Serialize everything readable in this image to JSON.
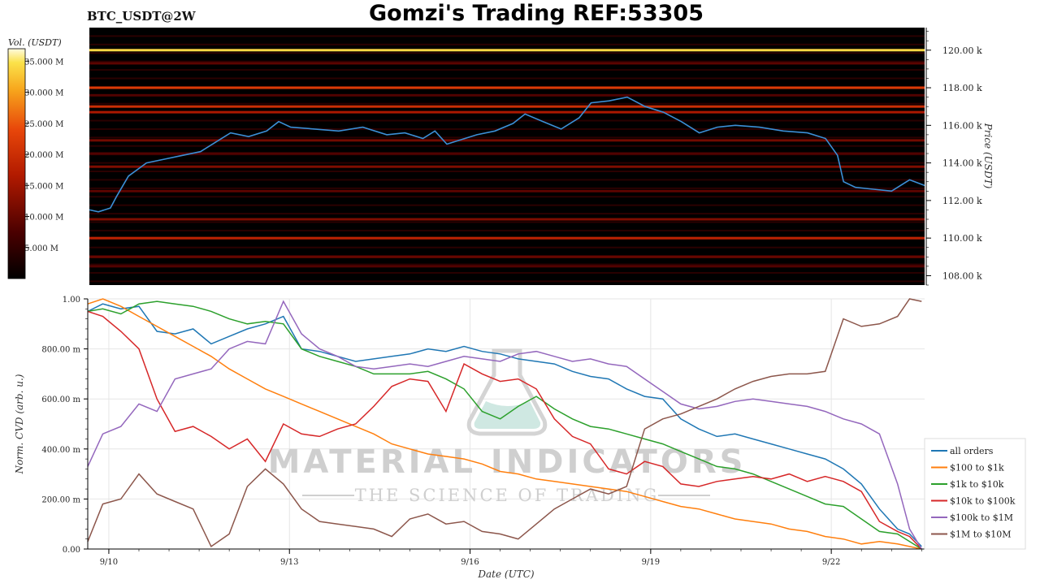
{
  "header": {
    "symbol": "BTC_USDT@2W",
    "title": "Gomzi's Trading REF:53305"
  },
  "colorbar": {
    "label": "Vol. (USDT)",
    "ticks": [
      "35.000 M",
      "30.000 M",
      "25.000 M",
      "20.000 M",
      "15.000 M",
      "10.000 M",
      "5.000 M"
    ],
    "tick_values": [
      35,
      30,
      25,
      20,
      15,
      10,
      5
    ],
    "range": [
      0,
      37
    ]
  },
  "watermark": {
    "line1": "MATERIAL INDICATORS",
    "line2": "THE SCIENCE OF TRADING"
  },
  "colors": {
    "price_line": "#3b8fd6",
    "heatmap_bg": "#000000",
    "grid": "#e6e6e6",
    "watermark": "#cfcfcf",
    "watermark_teal": "#cfe8e2"
  },
  "chart_data": [
    {
      "type": "heatmap",
      "title": "",
      "ylabel": "Price (USDT)",
      "ylim": [
        107500,
        121200
      ],
      "yticks": [
        108000,
        110000,
        112000,
        114000,
        116000,
        118000,
        120000
      ],
      "ytick_labels": [
        "108.00 k",
        "110.00 k",
        "112.00 k",
        "114.00 k",
        "116.00 k",
        "118.00 k",
        "120.00 k"
      ],
      "xlim": [
        9.65,
        23.55
      ],
      "levels": [
        {
          "price": 120000,
          "volume": 34
        },
        {
          "price": 118000,
          "volume": 22
        },
        {
          "price": 117000,
          "volume": 20
        },
        {
          "price": 110000,
          "volume": 18
        },
        {
          "price": 116700,
          "volume": 16
        },
        {
          "price": 111000,
          "volume": 12
        },
        {
          "price": 113800,
          "volume": 12
        },
        {
          "price": 115200,
          "volume": 11
        },
        {
          "price": 109000,
          "volume": 10
        },
        {
          "price": 119300,
          "volume": 9
        },
        {
          "price": 112500,
          "volume": 9
        },
        {
          "price": 114500,
          "volume": 8
        },
        {
          "price": 108500,
          "volume": 8
        },
        {
          "price": 117600,
          "volume": 8
        }
      ],
      "price_series": {
        "x": [
          9.65,
          9.8,
          10.0,
          10.1,
          10.3,
          10.6,
          10.9,
          11.2,
          11.5,
          11.8,
          12.0,
          12.3,
          12.6,
          12.8,
          13.0,
          13.4,
          13.8,
          14.2,
          14.6,
          14.9,
          15.2,
          15.4,
          15.6,
          15.9,
          16.1,
          16.4,
          16.7,
          16.9,
          17.2,
          17.5,
          17.8,
          18.0,
          18.3,
          18.6,
          18.9,
          19.2,
          19.5,
          19.8,
          20.1,
          20.4,
          20.8,
          21.2,
          21.6,
          21.9,
          22.1,
          22.2,
          22.4,
          22.7,
          23.0,
          23.3,
          23.55
        ],
        "y": [
          111500,
          111400,
          111600,
          112200,
          113300,
          114000,
          114200,
          114400,
          114600,
          115200,
          115600,
          115400,
          115700,
          116200,
          115900,
          115800,
          115700,
          115900,
          115500,
          115600,
          115300,
          115700,
          115000,
          115300,
          115500,
          115700,
          116100,
          116600,
          116200,
          115800,
          116400,
          117200,
          117300,
          117500,
          117000,
          116700,
          116200,
          115600,
          115900,
          116000,
          115900,
          115700,
          115600,
          115300,
          114400,
          113000,
          112700,
          112600,
          112500,
          113100,
          112800
        ]
      }
    },
    {
      "type": "line",
      "title": "",
      "xlabel": "Date (UTC)",
      "ylabel": "Norm. CVD (arb. u.)",
      "ylim": [
        0,
        1.0
      ],
      "yticks": [
        0,
        0.2,
        0.4,
        0.6,
        0.8,
        1.0
      ],
      "ytick_labels": [
        "0.00",
        "200.00 m",
        "400.00 m",
        "600.00 m",
        "800.00 m",
        "1.00"
      ],
      "xlim": [
        9.65,
        23.55
      ],
      "xticks": [
        10,
        13,
        16,
        19,
        22
      ],
      "xtick_labels": [
        "9/10",
        "9/13",
        "9/16",
        "9/19",
        "9/22"
      ],
      "x": [
        9.65,
        9.9,
        10.2,
        10.5,
        10.8,
        11.1,
        11.4,
        11.7,
        12.0,
        12.3,
        12.6,
        12.9,
        13.2,
        13.5,
        13.8,
        14.1,
        14.4,
        14.7,
        15.0,
        15.3,
        15.6,
        15.9,
        16.2,
        16.5,
        16.8,
        17.1,
        17.4,
        17.7,
        18.0,
        18.3,
        18.6,
        18.9,
        19.2,
        19.5,
        19.8,
        20.1,
        20.4,
        20.7,
        21.0,
        21.3,
        21.6,
        21.9,
        22.2,
        22.5,
        22.8,
        23.1,
        23.3,
        23.5
      ],
      "series": [
        {
          "name": "all orders",
          "color": "#1f77b4",
          "values": [
            0.95,
            0.98,
            0.96,
            0.97,
            0.87,
            0.86,
            0.88,
            0.82,
            0.85,
            0.88,
            0.9,
            0.93,
            0.8,
            0.79,
            0.77,
            0.75,
            0.76,
            0.77,
            0.78,
            0.8,
            0.79,
            0.81,
            0.79,
            0.78,
            0.76,
            0.75,
            0.74,
            0.71,
            0.69,
            0.68,
            0.64,
            0.61,
            0.6,
            0.52,
            0.48,
            0.45,
            0.46,
            0.44,
            0.42,
            0.4,
            0.38,
            0.36,
            0.32,
            0.26,
            0.16,
            0.08,
            0.06,
            0.01
          ]
        },
        {
          "name": "$100 to $1k",
          "color": "#ff7f0e",
          "values": [
            0.98,
            1.0,
            0.97,
            0.93,
            0.89,
            0.85,
            0.81,
            0.77,
            0.72,
            0.68,
            0.64,
            0.61,
            0.58,
            0.55,
            0.52,
            0.49,
            0.46,
            0.42,
            0.4,
            0.38,
            0.37,
            0.36,
            0.34,
            0.31,
            0.3,
            0.28,
            0.27,
            0.26,
            0.25,
            0.24,
            0.23,
            0.21,
            0.19,
            0.17,
            0.16,
            0.14,
            0.12,
            0.11,
            0.1,
            0.08,
            0.07,
            0.05,
            0.04,
            0.02,
            0.03,
            0.02,
            0.01,
            0.0
          ]
        },
        {
          "name": "$1k to $10k",
          "color": "#2ca02c",
          "values": [
            0.95,
            0.96,
            0.94,
            0.98,
            0.99,
            0.98,
            0.97,
            0.95,
            0.92,
            0.9,
            0.91,
            0.9,
            0.8,
            0.77,
            0.75,
            0.73,
            0.7,
            0.7,
            0.7,
            0.71,
            0.68,
            0.64,
            0.55,
            0.52,
            0.57,
            0.61,
            0.56,
            0.52,
            0.49,
            0.48,
            0.46,
            0.44,
            0.42,
            0.39,
            0.36,
            0.33,
            0.32,
            0.3,
            0.27,
            0.24,
            0.21,
            0.18,
            0.17,
            0.12,
            0.07,
            0.06,
            0.03,
            0.0
          ]
        },
        {
          "name": "$10k to $100k",
          "color": "#d62728",
          "values": [
            0.95,
            0.93,
            0.87,
            0.8,
            0.6,
            0.47,
            0.49,
            0.45,
            0.4,
            0.44,
            0.35,
            0.5,
            0.46,
            0.45,
            0.48,
            0.5,
            0.57,
            0.65,
            0.68,
            0.67,
            0.55,
            0.74,
            0.7,
            0.67,
            0.68,
            0.64,
            0.52,
            0.45,
            0.42,
            0.32,
            0.3,
            0.35,
            0.33,
            0.26,
            0.25,
            0.27,
            0.28,
            0.29,
            0.28,
            0.3,
            0.27,
            0.29,
            0.27,
            0.23,
            0.11,
            0.07,
            0.05,
            0.0
          ]
        },
        {
          "name": "$100k to $1M",
          "color": "#9467bd",
          "values": [
            0.33,
            0.46,
            0.49,
            0.58,
            0.55,
            0.68,
            0.7,
            0.72,
            0.8,
            0.83,
            0.82,
            0.99,
            0.86,
            0.8,
            0.77,
            0.73,
            0.72,
            0.73,
            0.74,
            0.73,
            0.75,
            0.77,
            0.76,
            0.75,
            0.78,
            0.79,
            0.77,
            0.75,
            0.76,
            0.74,
            0.73,
            0.68,
            0.63,
            0.58,
            0.56,
            0.57,
            0.59,
            0.6,
            0.59,
            0.58,
            0.57,
            0.55,
            0.52,
            0.5,
            0.46,
            0.26,
            0.08,
            0.0
          ]
        },
        {
          "name": "$1M to $10M",
          "color": "#8c564b",
          "values": [
            0.03,
            0.18,
            0.2,
            0.3,
            0.22,
            0.19,
            0.16,
            0.01,
            0.06,
            0.25,
            0.32,
            0.26,
            0.16,
            0.11,
            0.1,
            0.09,
            0.08,
            0.05,
            0.12,
            0.14,
            0.1,
            0.11,
            0.07,
            0.06,
            0.04,
            0.1,
            0.16,
            0.2,
            0.24,
            0.22,
            0.25,
            0.48,
            0.52,
            0.54,
            0.57,
            0.6,
            0.64,
            0.67,
            0.69,
            0.7,
            0.7,
            0.71,
            0.92,
            0.89,
            0.9,
            0.93,
            1.0,
            0.99
          ]
        }
      ],
      "legend_position": "right"
    }
  ]
}
